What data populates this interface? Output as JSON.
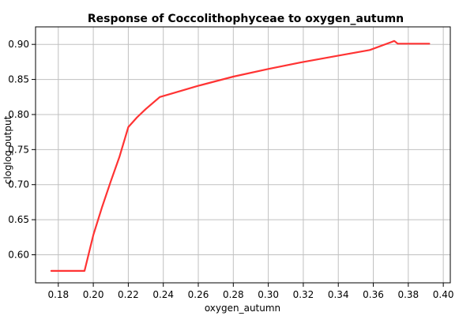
{
  "chart_data": {
    "type": "line",
    "title": "Response of Coccolithophyceae to oxygen_autumn",
    "xlabel": "oxygen_autumn",
    "ylabel": "cloglog output",
    "xlim": [
      0.167,
      0.404
    ],
    "ylim": [
      0.56,
      0.925
    ],
    "x_ticks": [
      "0.18",
      "0.20",
      "0.22",
      "0.24",
      "0.26",
      "0.28",
      "0.30",
      "0.32",
      "0.34",
      "0.36",
      "0.38",
      "0.40"
    ],
    "y_ticks": [
      "0.60",
      "0.65",
      "0.70",
      "0.75",
      "0.80",
      "0.85",
      "0.90"
    ],
    "grid": true,
    "series_color": "#ff3333",
    "series": [
      {
        "x": [
          0.176,
          0.195,
          0.2,
          0.205,
          0.21,
          0.215,
          0.22,
          0.225,
          0.23,
          0.238,
          0.245,
          0.26,
          0.28,
          0.3,
          0.32,
          0.34,
          0.358,
          0.37,
          0.372,
          0.374,
          0.38,
          0.392
        ],
        "y": [
          0.577,
          0.577,
          0.628,
          0.668,
          0.705,
          0.74,
          0.782,
          0.796,
          0.808,
          0.825,
          0.83,
          0.841,
          0.854,
          0.865,
          0.875,
          0.884,
          0.892,
          0.903,
          0.905,
          0.901,
          0.901,
          0.901
        ]
      }
    ]
  }
}
